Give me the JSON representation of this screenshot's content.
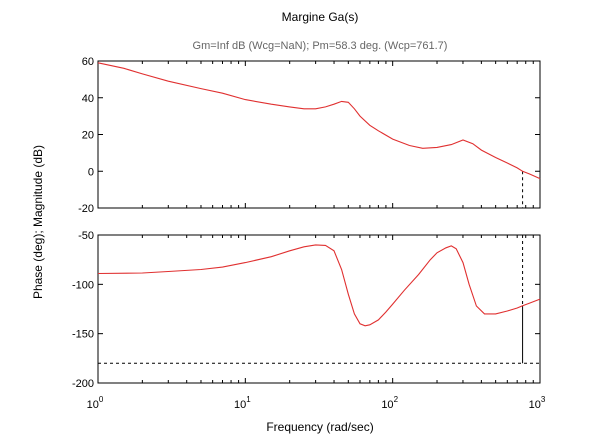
{
  "chart_data": [
    {
      "type": "line",
      "panel": "magnitude",
      "title": "Margine Ga(s)",
      "subtitle": "Gm=Inf dB (Wcg=NaN);  Pm=58.3 deg. (Wcp=761.7)",
      "ylabel": "Phase (deg); Magnitude (dB)",
      "xscale": "log",
      "xlim": [
        1,
        1000
      ],
      "ylim": [
        -20,
        60
      ],
      "yticks": [
        -20,
        0,
        20,
        40,
        60
      ],
      "series": [
        {
          "color": "#e03030",
          "x": [
            1,
            1.5,
            2,
            3,
            5,
            7,
            10,
            15,
            20,
            25,
            30,
            35,
            40,
            45,
            50,
            55,
            60,
            70,
            80,
            100,
            130,
            160,
            200,
            250,
            300,
            350,
            400,
            500,
            600,
            700,
            761.7,
            850,
            1000
          ],
          "y": [
            59,
            56,
            53,
            49,
            45,
            42.5,
            39,
            36.5,
            35,
            34,
            34,
            35,
            36.5,
            38,
            37.5,
            34,
            30,
            25,
            22,
            17.5,
            14,
            12.5,
            13,
            14.5,
            17,
            15,
            11.5,
            7.5,
            4.5,
            1.8,
            0,
            -1.5,
            -4
          ]
        }
      ],
      "markers": {
        "crossover_frequency": 761.7,
        "crossover_magnitude": 0
      }
    },
    {
      "type": "line",
      "panel": "phase",
      "xlabel": "Frequency (rad/sec)",
      "xscale": "log",
      "xlim": [
        1,
        1000
      ],
      "ylim": [
        -200,
        -50
      ],
      "yticks": [
        -200,
        -150,
        -100,
        -50
      ],
      "xtick_labels": [
        "10^0",
        "10^1",
        "10^2",
        "10^3"
      ],
      "series": [
        {
          "color": "#e03030",
          "x": [
            1,
            2,
            3,
            5,
            7,
            10,
            15,
            20,
            25,
            30,
            35,
            40,
            45,
            50,
            55,
            60,
            65,
            70,
            80,
            90,
            100,
            120,
            150,
            180,
            200,
            230,
            250,
            270,
            300,
            330,
            370,
            420,
            500,
            600,
            700,
            761.7,
            850,
            1000
          ],
          "y": [
            -89,
            -88.5,
            -87,
            -85,
            -82.5,
            -78,
            -72,
            -66,
            -62,
            -60,
            -60.5,
            -66,
            -85,
            -110,
            -130,
            -140,
            -142,
            -141,
            -136,
            -128,
            -120,
            -106,
            -90,
            -75,
            -68,
            -63,
            -61,
            -64,
            -78,
            -100,
            -122,
            -130,
            -130,
            -127,
            -124,
            -121.7,
            -119,
            -115
          ]
        }
      ],
      "markers": {
        "reference_phase": -180,
        "phase_margin_frequency": 761.7,
        "phase_at_margin": -121.7
      }
    }
  ]
}
